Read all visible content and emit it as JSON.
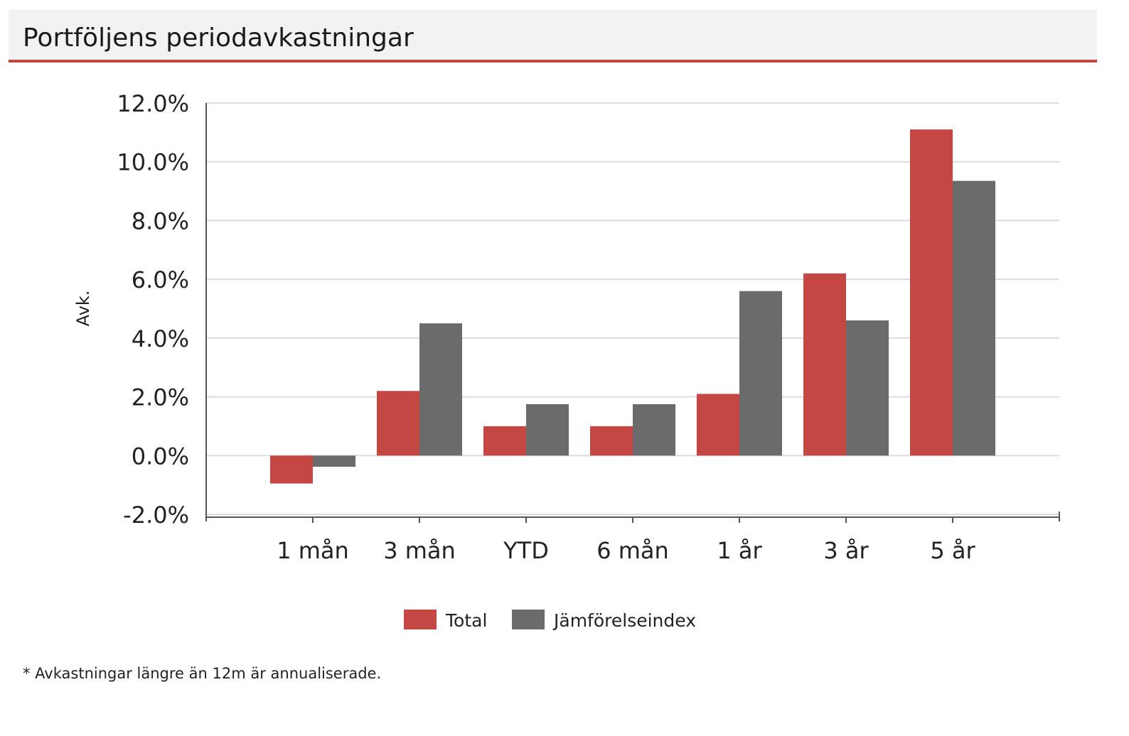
{
  "header": {
    "title": "Portföljens periodavkastningar"
  },
  "footnote": "* Avkastningar längre än 12m är annualiserade.",
  "colors": {
    "total": "#c44744",
    "benchmark": "#6b6b6b",
    "grid": "#dcdcdc",
    "axis": "#555555",
    "accent": "#c44744"
  },
  "chart_data": {
    "type": "bar",
    "categories": [
      "1 mån",
      "3 mån",
      "YTD",
      "6 mån",
      "1 år",
      "3 år",
      "5 år"
    ],
    "series": [
      {
        "name": "Total",
        "values": [
          -0.95,
          2.2,
          1.0,
          1.0,
          2.1,
          6.2,
          11.1
        ]
      },
      {
        "name": "Jämförelseindex",
        "values": [
          -0.38,
          4.5,
          1.75,
          1.75,
          5.6,
          4.6,
          9.35
        ]
      }
    ],
    "title": "",
    "xlabel": "",
    "ylabel": "Avk.",
    "ylim": [
      -2.0,
      12.0
    ],
    "yticks": [
      12.0,
      10.0,
      8.0,
      6.0,
      4.0,
      2.0,
      0.0,
      -2.0
    ],
    "ytick_labels": [
      "12.0%",
      "10.0%",
      "8.0%",
      "6.0%",
      "4.0%",
      "2.0%",
      "0.0%",
      "-2.0%"
    ],
    "grid": true,
    "legend": "bottom-center"
  }
}
